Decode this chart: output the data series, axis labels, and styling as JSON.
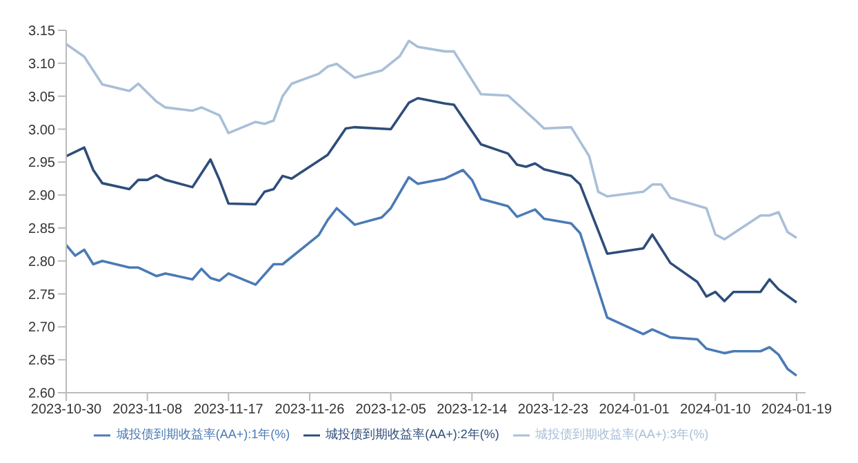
{
  "chart_data": {
    "type": "line",
    "xlim": [
      "2023-10-30",
      "2024-01-20"
    ],
    "xticks": [
      "2023-10-30",
      "2023-11-08",
      "2023-11-17",
      "2023-11-26",
      "2023-12-05",
      "2023-12-14",
      "2023-12-23",
      "2024-01-01",
      "2024-01-10",
      "2024-01-19"
    ],
    "ylim": [
      2.6,
      3.15
    ],
    "yticks": [
      {
        "value": 2.6,
        "label": "2.60"
      },
      2.65,
      {
        "value": 2.7,
        "label": "2.70"
      },
      2.75,
      {
        "value": 2.8,
        "label": "2.80"
      },
      2.85,
      {
        "value": 2.9,
        "label": "2.90"
      },
      2.95,
      {
        "value": 3.0,
        "label": "3.00"
      },
      3.05,
      {
        "value": 3.1,
        "label": "3.10"
      },
      3.15
    ],
    "legend": "bottom",
    "grid": false,
    "marker": "none",
    "line_style": "solid",
    "series": [
      {
        "name": "城投债到期收益率(AA+):1年(%)",
        "color": "#4a7ab5",
        "x": [
          "2023-10-30",
          "2023-10-31",
          "2023-11-01",
          "2023-11-02",
          "2023-11-03",
          "2023-11-06",
          "2023-11-07",
          "2023-11-09",
          "2023-11-10",
          "2023-11-13",
          "2023-11-14",
          "2023-11-15",
          "2023-11-16",
          "2023-11-17",
          "2023-11-20",
          "2023-11-22",
          "2023-11-23",
          "2023-11-27",
          "2023-11-28",
          "2023-11-29",
          "2023-12-01",
          "2023-12-04",
          "2023-12-05",
          "2023-12-07",
          "2023-12-08",
          "2023-12-11",
          "2023-12-13",
          "2023-12-14",
          "2023-12-15",
          "2023-12-18",
          "2023-12-19",
          "2023-12-21",
          "2023-12-22",
          "2023-12-25",
          "2023-12-26",
          "2023-12-29",
          "2024-01-02",
          "2024-01-03",
          "2024-01-05",
          "2024-01-08",
          "2024-01-09",
          "2024-01-11",
          "2024-01-12",
          "2024-01-15",
          "2024-01-16",
          "2024-01-17",
          "2024-01-18",
          "2024-01-19"
        ],
        "values": [
          2.824,
          2.808,
          2.817,
          2.795,
          2.8,
          2.79,
          2.79,
          2.777,
          2.781,
          2.772,
          2.788,
          2.774,
          2.77,
          2.781,
          2.764,
          2.795,
          2.795,
          2.839,
          2.862,
          2.88,
          2.855,
          2.866,
          2.88,
          2.927,
          2.917,
          2.925,
          2.938,
          2.923,
          2.894,
          2.883,
          2.867,
          2.878,
          2.864,
          2.857,
          2.842,
          2.714,
          2.689,
          2.696,
          2.684,
          2.681,
          2.667,
          2.66,
          2.663,
          2.663,
          2.669,
          2.658,
          2.636,
          2.626
        ]
      },
      {
        "name": "城投债到期收益率(AA+):2年(%)",
        "color": "#2e4d7a",
        "x": [
          "2023-10-30",
          "2023-11-01",
          "2023-11-02",
          "2023-11-03",
          "2023-11-06",
          "2023-11-07",
          "2023-11-08",
          "2023-11-09",
          "2023-11-10",
          "2023-11-13",
          "2023-11-15",
          "2023-11-16",
          "2023-11-17",
          "2023-11-20",
          "2023-11-21",
          "2023-11-22",
          "2023-11-23",
          "2023-11-24",
          "2023-11-28",
          "2023-11-29",
          "2023-11-30",
          "2023-12-01",
          "2023-12-05",
          "2023-12-07",
          "2023-12-08",
          "2023-12-11",
          "2023-12-12",
          "2023-12-15",
          "2023-12-18",
          "2023-12-19",
          "2023-12-20",
          "2023-12-21",
          "2023-12-22",
          "2023-12-25",
          "2023-12-26",
          "2023-12-29",
          "2024-01-02",
          "2024-01-03",
          "2024-01-05",
          "2024-01-08",
          "2024-01-09",
          "2024-01-10",
          "2024-01-11",
          "2024-01-12",
          "2024-01-15",
          "2024-01-16",
          "2024-01-17",
          "2024-01-19"
        ],
        "values": [
          2.959,
          2.972,
          2.938,
          2.918,
          2.909,
          2.923,
          2.923,
          2.93,
          2.923,
          2.912,
          2.954,
          2.923,
          2.887,
          2.886,
          2.905,
          2.909,
          2.929,
          2.925,
          2.961,
          2.981,
          3.001,
          3.003,
          3.0,
          3.04,
          3.047,
          3.039,
          3.037,
          2.977,
          2.963,
          2.946,
          2.943,
          2.948,
          2.939,
          2.929,
          2.916,
          2.811,
          2.819,
          2.84,
          2.797,
          2.768,
          2.746,
          2.753,
          2.739,
          2.753,
          2.753,
          2.772,
          2.757,
          2.737
        ]
      },
      {
        "name": "城投债到期收益率(AA+):3年(%)",
        "color": "#a9bfd8",
        "x": [
          "2023-10-30",
          "2023-11-01",
          "2023-11-03",
          "2023-11-06",
          "2023-11-07",
          "2023-11-09",
          "2023-11-10",
          "2023-11-13",
          "2023-11-14",
          "2023-11-16",
          "2023-11-17",
          "2023-11-20",
          "2023-11-21",
          "2023-11-22",
          "2023-11-23",
          "2023-11-24",
          "2023-11-27",
          "2023-11-28",
          "2023-11-29",
          "2023-12-01",
          "2023-12-04",
          "2023-12-06",
          "2023-12-07",
          "2023-12-08",
          "2023-12-11",
          "2023-12-12",
          "2023-12-15",
          "2023-12-18",
          "2023-12-21",
          "2023-12-22",
          "2023-12-25",
          "2023-12-27",
          "2023-12-28",
          "2023-12-29",
          "2024-01-02",
          "2024-01-03",
          "2024-01-04",
          "2024-01-05",
          "2024-01-09",
          "2024-01-10",
          "2024-01-11",
          "2024-01-15",
          "2024-01-16",
          "2024-01-17",
          "2024-01-18",
          "2024-01-19"
        ],
        "values": [
          3.129,
          3.11,
          3.068,
          3.058,
          3.069,
          3.042,
          3.033,
          3.028,
          3.033,
          3.021,
          2.994,
          3.011,
          3.008,
          3.013,
          3.05,
          3.069,
          3.084,
          3.095,
          3.099,
          3.078,
          3.089,
          3.111,
          3.134,
          3.125,
          3.118,
          3.118,
          3.053,
          3.051,
          3.014,
          3.001,
          3.003,
          2.959,
          2.905,
          2.898,
          2.905,
          2.916,
          2.916,
          2.896,
          2.88,
          2.84,
          2.833,
          2.869,
          2.869,
          2.874,
          2.844,
          2.835
        ]
      }
    ]
  }
}
